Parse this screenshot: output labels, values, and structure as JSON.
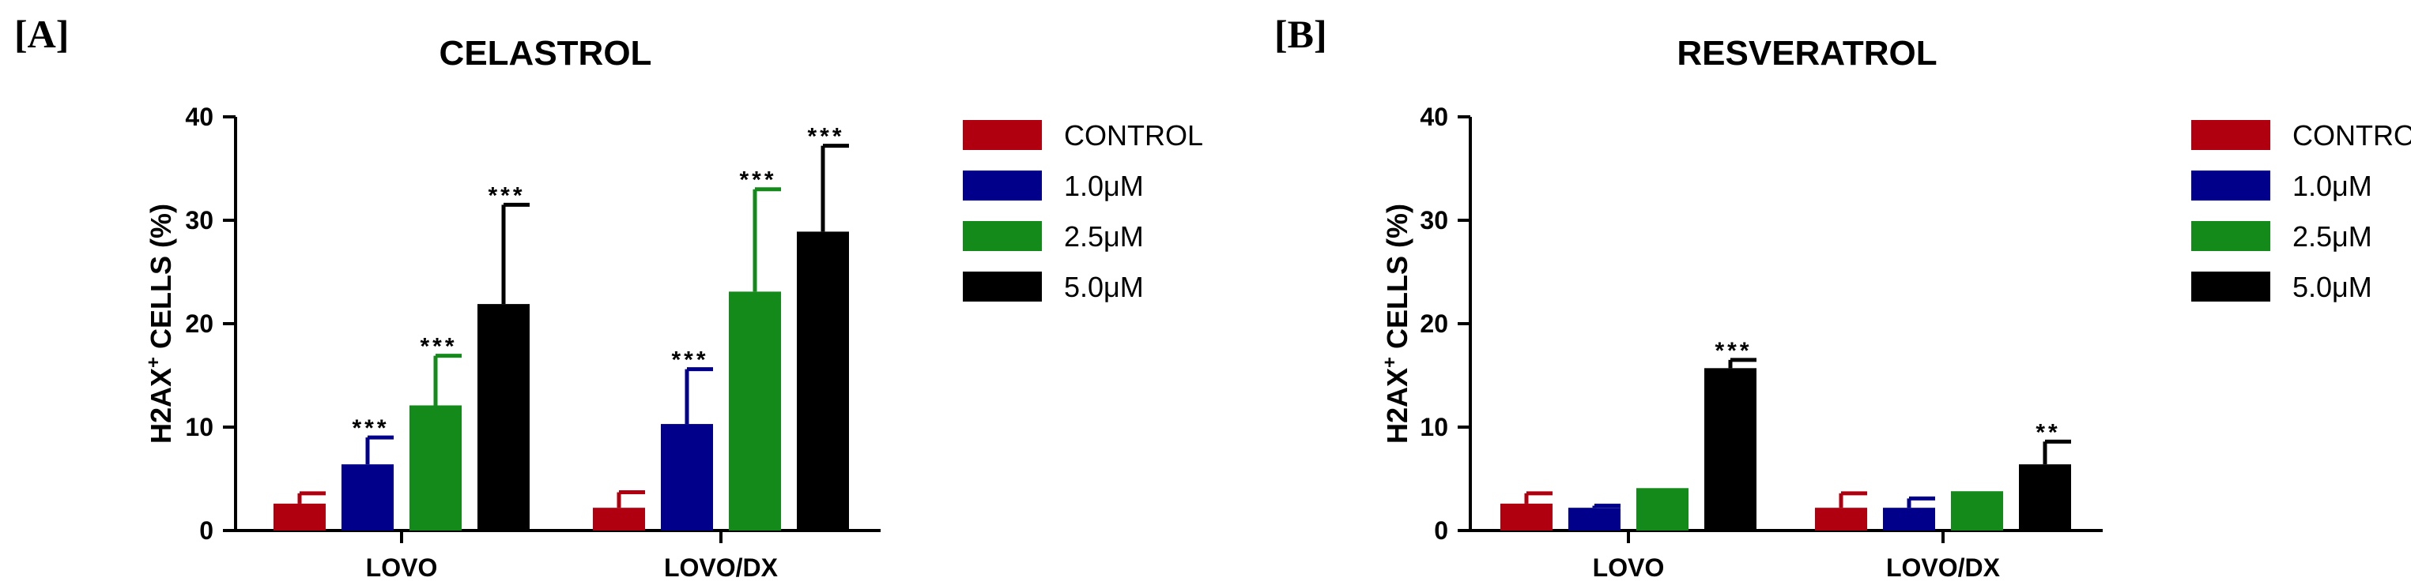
{
  "chart_data": [
    {
      "panel": "[A]",
      "type": "bar",
      "title": "CELASTROL",
      "ylabel": "H2AX",
      "ylabel_sup": "+",
      "ylabel_suffix": " CELLS (%)",
      "ylim": [
        0,
        40
      ],
      "yticks": [
        "0",
        "10",
        "20",
        "30",
        "40"
      ],
      "categories": [
        "LOVO",
        "LOVO/DX"
      ],
      "legend_position": "right",
      "series": [
        {
          "name": "CONTROL",
          "color": "#b0000f",
          "values": [
            2.6,
            2.2
          ],
          "errors": [
            1.0,
            1.5
          ],
          "sig": [
            "",
            ""
          ]
        },
        {
          "name": "1.0μM",
          "color": "#00008b",
          "values": [
            6.4,
            10.3
          ],
          "errors": [
            2.6,
            5.3
          ],
          "sig": [
            "***",
            "***"
          ]
        },
        {
          "name": "2.5μM",
          "color": "#138a1a",
          "values": [
            12.1,
            23.1
          ],
          "errors": [
            4.8,
            9.9
          ],
          "sig": [
            "***",
            "***"
          ]
        },
        {
          "name": "5.0μM",
          "color": "#000000",
          "values": [
            21.9,
            28.9
          ],
          "errors": [
            9.6,
            8.3
          ],
          "sig": [
            "***",
            "***"
          ]
        }
      ]
    },
    {
      "panel": "[B]",
      "type": "bar",
      "title": "RESVERATROL",
      "ylabel": "H2AX",
      "ylabel_sup": "+",
      "ylabel_suffix": " CELLS (%)",
      "ylim": [
        0,
        40
      ],
      "yticks": [
        "0",
        "10",
        "20",
        "30",
        "40"
      ],
      "categories": [
        "LOVO",
        "LOVO/DX"
      ],
      "legend_position": "right",
      "series": [
        {
          "name": "CONTROL",
          "color": "#b0000f",
          "values": [
            2.6,
            2.2
          ],
          "errors": [
            1.0,
            1.4
          ],
          "sig": [
            "",
            ""
          ]
        },
        {
          "name": "1.0μM",
          "color": "#00008b",
          "values": [
            2.2,
            2.2
          ],
          "errors": [
            0.2,
            0.9
          ],
          "sig": [
            "",
            ""
          ]
        },
        {
          "name": "2.5μM",
          "color": "#138a1a",
          "values": [
            4.1,
            3.8
          ],
          "errors": [
            0,
            0
          ],
          "sig": [
            "",
            ""
          ]
        },
        {
          "name": "5.0μM",
          "color": "#000000",
          "values": [
            15.7,
            6.4
          ],
          "errors": [
            0.8,
            2.2
          ],
          "sig": [
            "***",
            "**"
          ]
        }
      ]
    }
  ]
}
